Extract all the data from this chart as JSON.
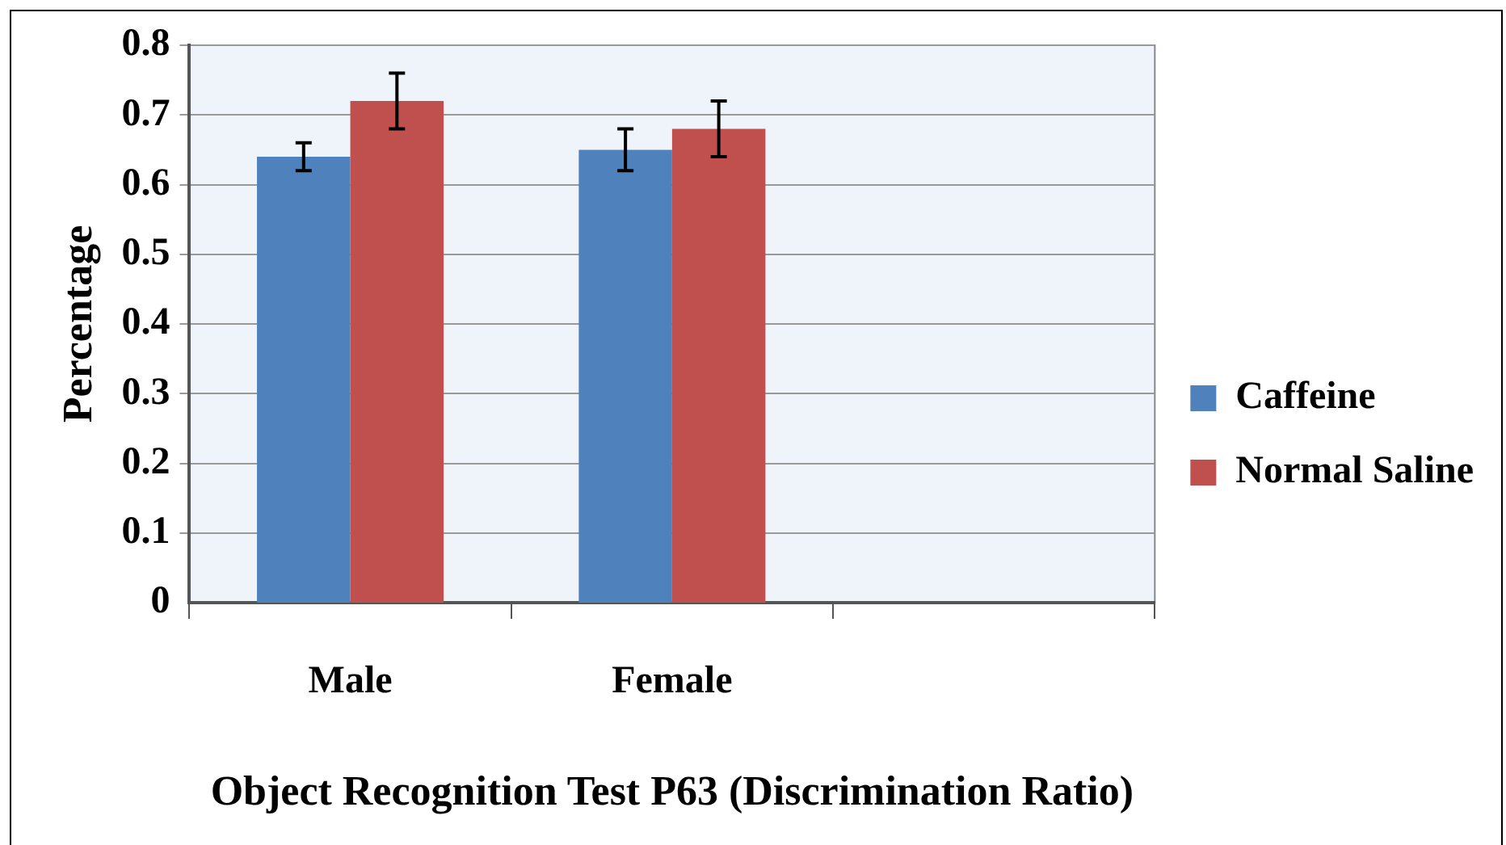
{
  "chart_data": {
    "type": "bar",
    "xlabel": "Object Recognition Test P63 (Discrimination Ratio)",
    "ylabel": "Percentage",
    "categories": [
      "Male",
      "Female",
      null
    ],
    "series": [
      {
        "name": "Caffeine",
        "color": "#4f81bd",
        "values": [
          0.64,
          0.65,
          null
        ],
        "errors": [
          0.02,
          0.03,
          null
        ]
      },
      {
        "name": "Normal Saline",
        "color": "#c0504d",
        "values": [
          0.72,
          0.68,
          null
        ],
        "errors": [
          0.04,
          0.04,
          null
        ]
      }
    ],
    "ylim": [
      0,
      0.8
    ],
    "yticks": [
      0,
      0.1,
      0.2,
      0.3,
      0.4,
      0.5,
      0.6,
      0.7,
      0.8
    ],
    "grid": "y",
    "legend": "right"
  }
}
